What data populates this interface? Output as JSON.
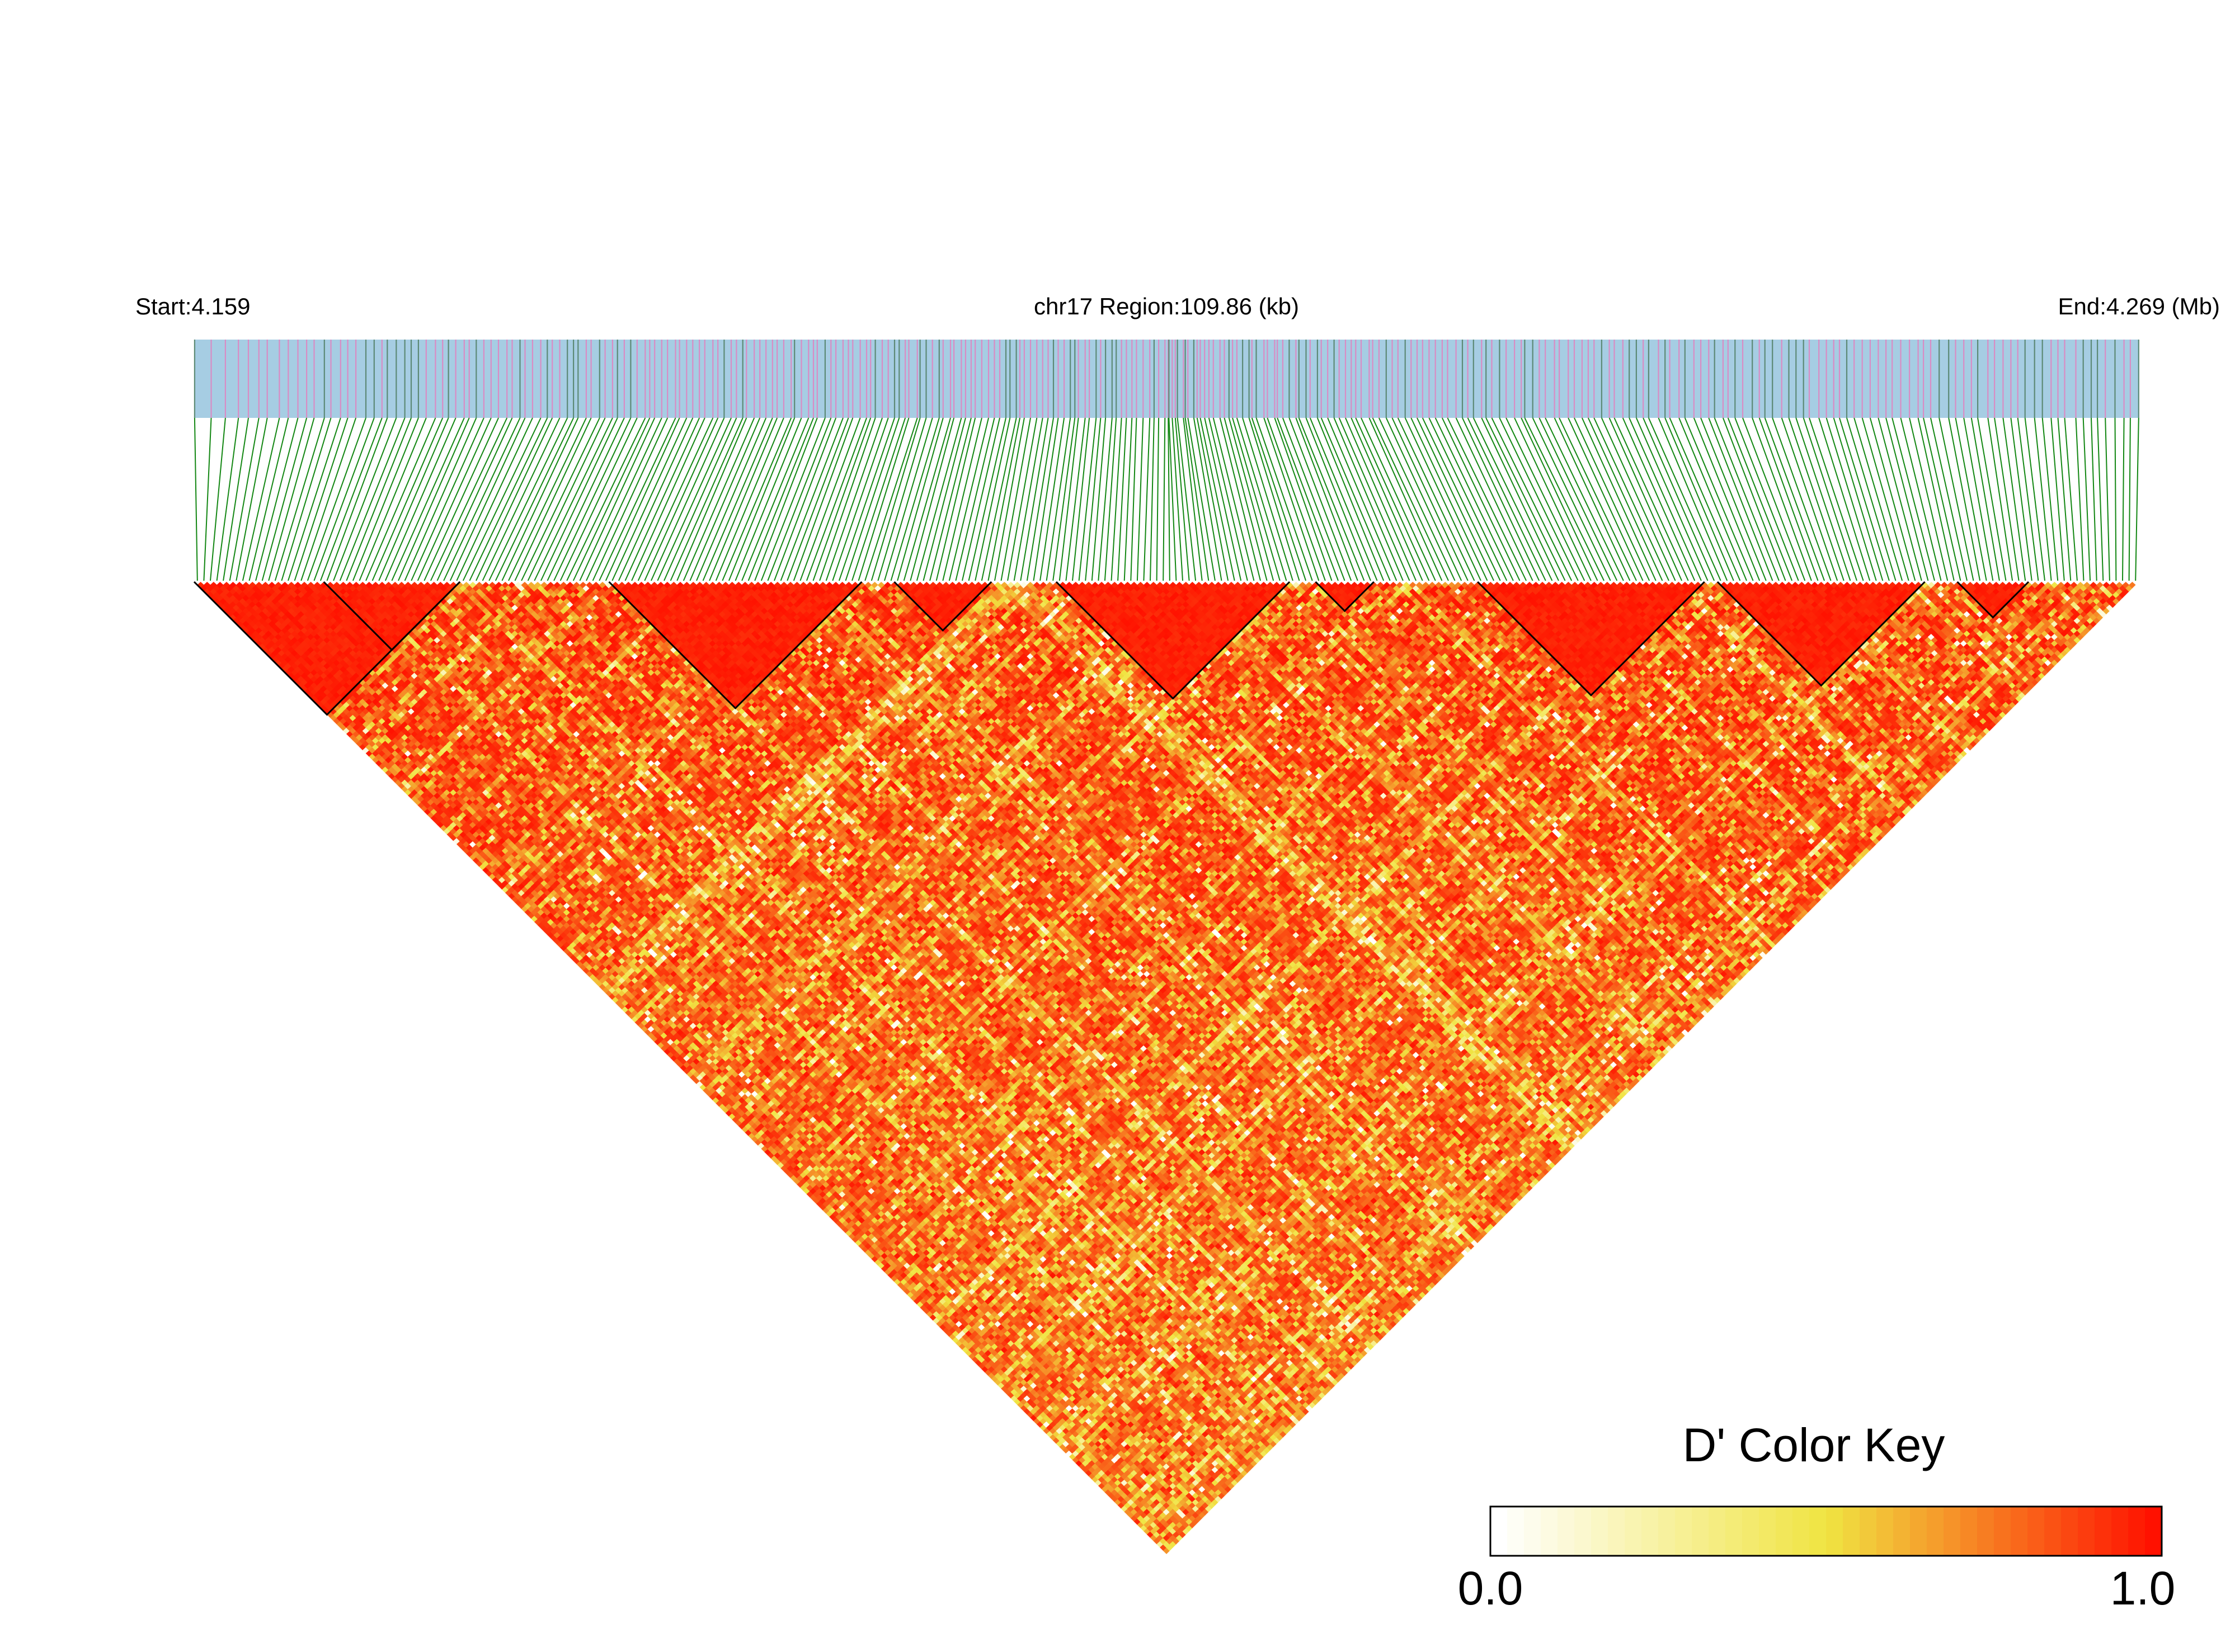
{
  "chart_data": {
    "type": "heatmap",
    "subtype": "ld-triangle",
    "header": {
      "start_label": "Start:4.159",
      "region_label": "chr17 Region:109.86 (kb)",
      "end_label": "End:4.269 (Mb)"
    },
    "region": {
      "chromosome": "chr17",
      "start_mb": 4.159,
      "end_mb": 4.269,
      "length_kb": 109.86
    },
    "snp_count": 300,
    "value_range": [
      0,
      1
    ],
    "colors": {
      "gene_band": "#a6cde3",
      "snp_tick_primary": "#d98cc4",
      "snp_tick_secondary": "#5d8a76",
      "connector": "#138713",
      "block_outline": "#000000",
      "high": "#ff1100",
      "mid": "#f0e442",
      "low": "#ffffff"
    },
    "haplotype_blocks": [
      {
        "first_snp": 0,
        "last_snp": 40
      },
      {
        "first_snp": 20,
        "last_snp": 40
      },
      {
        "first_snp": 64,
        "last_snp": 102
      },
      {
        "first_snp": 108,
        "last_snp": 122
      },
      {
        "first_snp": 133,
        "last_snp": 168
      },
      {
        "first_snp": 173,
        "last_snp": 181
      },
      {
        "first_snp": 198,
        "last_snp": 232
      },
      {
        "first_snp": 235,
        "last_snp": 266
      },
      {
        "first_snp": 272,
        "last_snp": 282
      }
    ],
    "color_key": {
      "title": "D' Color Key",
      "min_label": "0.0",
      "max_label": "1.0"
    }
  }
}
